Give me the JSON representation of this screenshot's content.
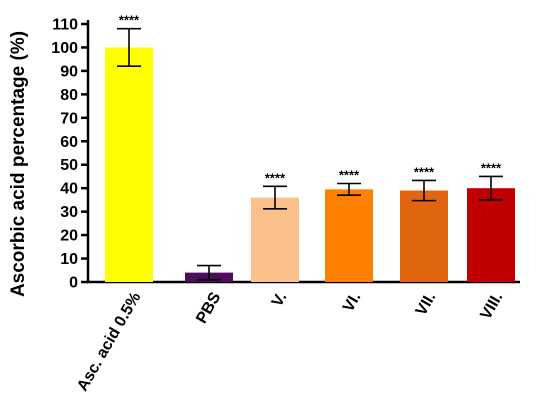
{
  "chart_data": {
    "type": "bar",
    "title": "",
    "xlabel": "",
    "ylabel": "Ascorbic acid percentage (%)",
    "ylim": [
      0,
      110
    ],
    "yticks": [
      0,
      10,
      20,
      30,
      40,
      50,
      60,
      70,
      80,
      90,
      100,
      110
    ],
    "grid": false,
    "categories": [
      "Asc. acid 0.5%",
      "PBS",
      "V.",
      "VI.",
      "VII.",
      "VIII."
    ],
    "values": [
      100,
      4,
      36,
      39.5,
      39,
      40
    ],
    "errors": [
      8,
      3,
      4.8,
      2.5,
      4.3,
      5
    ],
    "significance": [
      "****",
      "",
      "****",
      "****",
      "****",
      "****"
    ],
    "colors": [
      "#ffff00",
      "#4b0d5c",
      "#fac18a",
      "#ff8000",
      "#e0650e",
      "#c00000"
    ]
  }
}
